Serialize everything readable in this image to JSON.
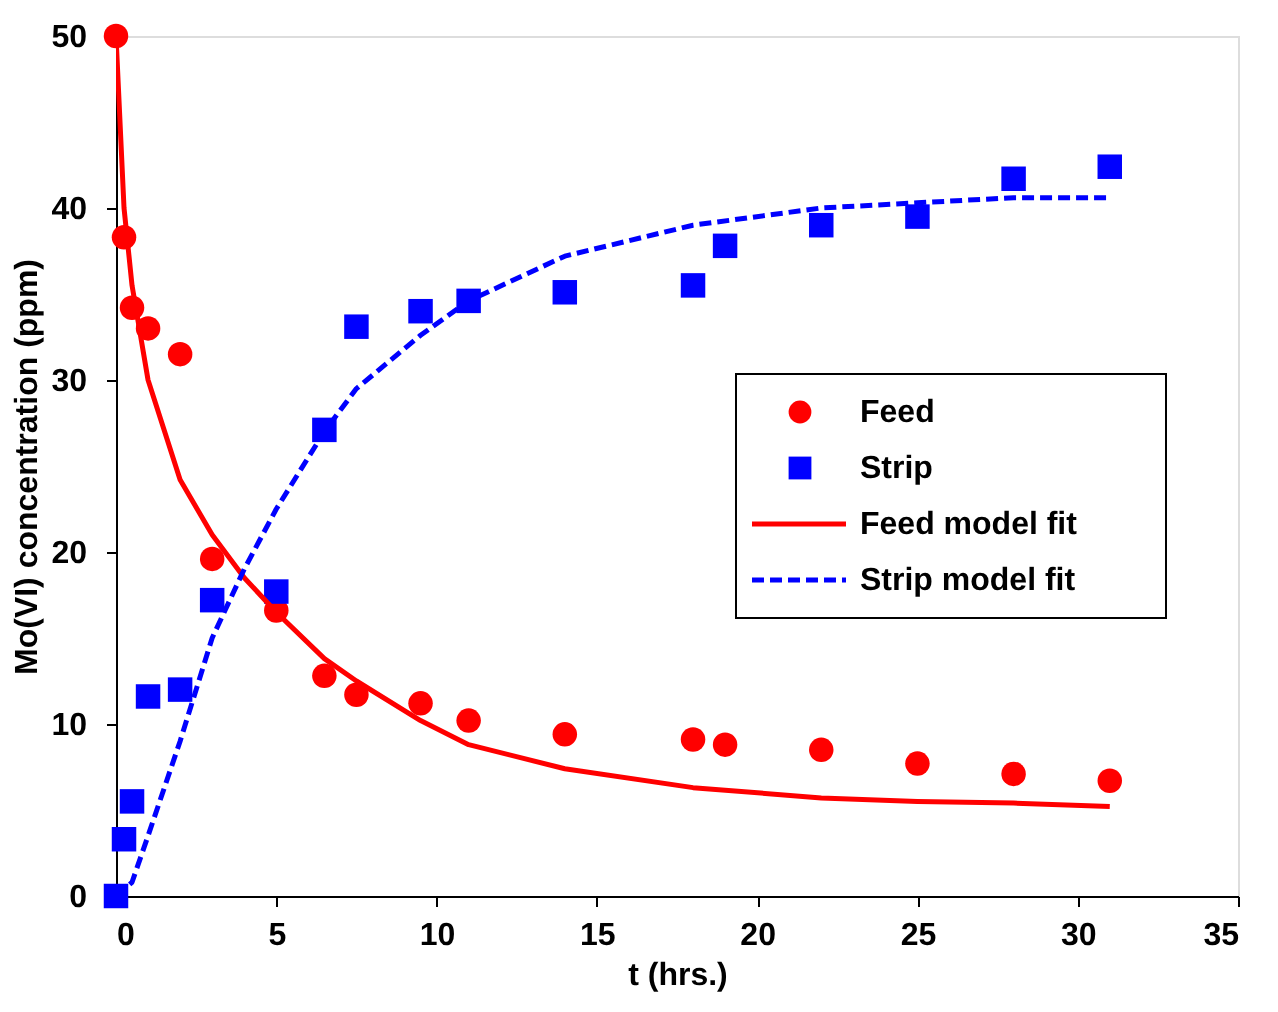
{
  "chart_data": {
    "type": "scatter",
    "xlabel": "t (hrs.)",
    "ylabel": "Mo(VI) concentration (ppm)",
    "xlim": [
      0,
      35
    ],
    "xticks": [
      0,
      5,
      10,
      15,
      20,
      25,
      30,
      35
    ],
    "ylim": [
      0,
      50
    ],
    "yticks": [
      0,
      10,
      20,
      30,
      40,
      50
    ],
    "grid": false,
    "legend": "right",
    "series": [
      {
        "name": "Feed",
        "marker": "circle",
        "color": "#ff0000",
        "x": [
          0,
          0.25,
          0.5,
          1,
          2,
          3,
          5,
          6.5,
          7.5,
          9.5,
          11,
          14,
          18,
          19,
          22,
          25,
          28,
          31
        ],
        "values": [
          50,
          38.3,
          34.2,
          33,
          31.5,
          19.6,
          16.6,
          12.8,
          11.7,
          11.2,
          10.2,
          9.4,
          9.1,
          8.8,
          8.5,
          7.7,
          7.1,
          6.7
        ]
      },
      {
        "name": "Strip",
        "marker": "square",
        "color": "#0000ff",
        "x": [
          0,
          0.25,
          0.5,
          1,
          2,
          3,
          5,
          6.5,
          7.5,
          9.5,
          11,
          14,
          18,
          19,
          22,
          25,
          28,
          31
        ],
        "values": [
          0,
          3.3,
          5.5,
          11.6,
          12,
          17.2,
          17.7,
          27.1,
          33.1,
          34,
          34.6,
          35.1,
          35.5,
          37.8,
          39,
          39.5,
          41.7,
          42.4
        ]
      },
      {
        "name": "Feed model fit",
        "type": "line",
        "line_style": "solid",
        "color": "#ff0000",
        "x": [
          0,
          0.25,
          0.5,
          1,
          2,
          3,
          4,
          5,
          6.5,
          7.5,
          9.5,
          11,
          14,
          18,
          22,
          25,
          28,
          31
        ],
        "values": [
          50,
          40,
          35.5,
          30,
          24.2,
          21,
          18.5,
          16.5,
          13.8,
          12.5,
          10.2,
          8.8,
          7.4,
          6.3,
          5.7,
          5.5,
          5.4,
          5.2
        ]
      },
      {
        "name": "Strip model fit",
        "type": "line",
        "line_style": "dashed",
        "color": "#0000ff",
        "x": [
          0,
          0.5,
          1,
          2,
          3,
          4,
          5,
          6.5,
          7.5,
          9.5,
          11,
          14,
          18,
          22,
          25,
          28,
          31
        ],
        "values": [
          0,
          0.8,
          3.5,
          9,
          15,
          19,
          22.5,
          27,
          29.5,
          32.6,
          34.6,
          37.2,
          39,
          40,
          40.3,
          40.6,
          40.6
        ]
      }
    ]
  }
}
